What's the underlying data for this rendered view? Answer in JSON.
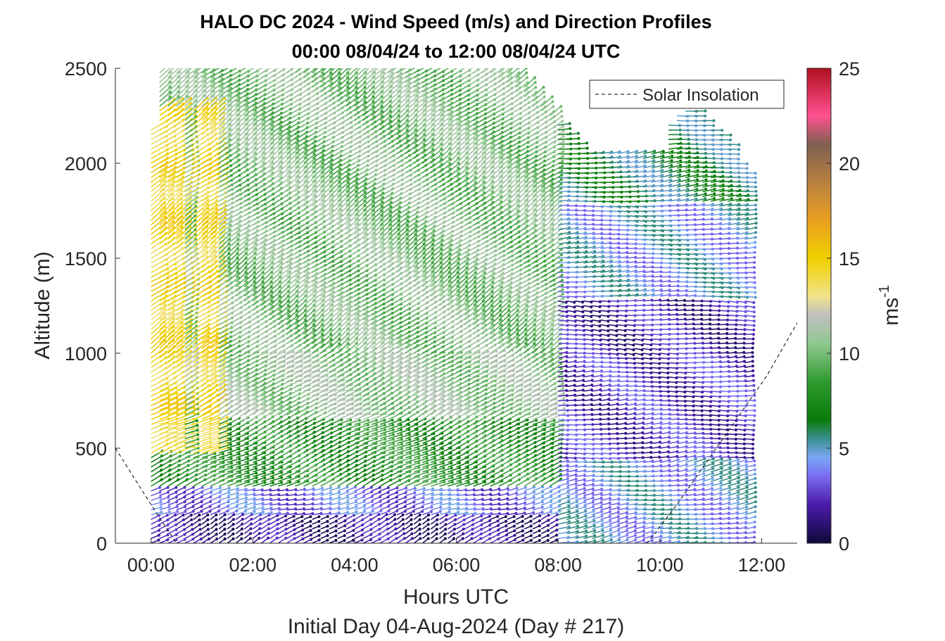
{
  "chart_data": {
    "type": "wind_barb_profile",
    "title": "HALO DC 2024 - Wind Speed (m/s) and Direction Profiles",
    "subtitle": "00:00 08/04/24 to 12:00 08/04/24  UTC",
    "xlabel": "Hours UTC",
    "xlabel2": "Initial Day 04-Aug-2024 (Day # 217)",
    "ylabel": "Altitude (m)",
    "xlim_hours": [
      -0.7,
      12.7
    ],
    "ylim": [
      0,
      2500
    ],
    "x_ticks": [
      0,
      2,
      4,
      6,
      8,
      10,
      12
    ],
    "x_tick_labels": [
      "00:00",
      "02:00",
      "04:00",
      "06:00",
      "08:00",
      "10:00",
      "12:00"
    ],
    "y_ticks": [
      0,
      500,
      1000,
      1500,
      2000,
      2500
    ],
    "y_tick_labels": [
      "0",
      "500",
      "1000",
      "1500",
      "2000",
      "2500"
    ],
    "legend": {
      "label": "Solar Insolation",
      "position": "top-right",
      "line_style": "dashed"
    },
    "colorbar": {
      "label": "ms",
      "label_exponent": "-1",
      "range": [
        0,
        25
      ],
      "ticks": [
        0,
        5,
        10,
        15,
        20,
        25
      ],
      "tick_labels": [
        "0",
        "5",
        "10",
        "15",
        "20",
        "25"
      ],
      "stops": [
        [
          0,
          "#0d0a3a"
        ],
        [
          2,
          "#4a1aa8"
        ],
        [
          3.5,
          "#7a6af0"
        ],
        [
          4.5,
          "#7aa6f5"
        ],
        [
          5.5,
          "#3a8f8f"
        ],
        [
          6.5,
          "#0a7a0a"
        ],
        [
          8.5,
          "#2f9a2f"
        ],
        [
          10.5,
          "#90c890"
        ],
        [
          12,
          "#bfbfbf"
        ],
        [
          13,
          "#f0e38a"
        ],
        [
          15,
          "#f0d000"
        ],
        [
          17,
          "#e8a020"
        ],
        [
          19,
          "#b88040"
        ],
        [
          21,
          "#806050"
        ],
        [
          22.5,
          "#ff5090"
        ],
        [
          25,
          "#b0101e"
        ]
      ]
    },
    "solar_insolation": {
      "x": [
        -0.7,
        -0.3,
        0.2,
        0.5,
        1,
        5,
        9.75,
        10.3,
        10.9,
        11.5,
        12.1,
        12.7
      ],
      "y": [
        500,
        330,
        120,
        0,
        0,
        0,
        0,
        190,
        420,
        650,
        880,
        1160
      ]
    },
    "profiles": {
      "time_start": 0.0,
      "time_step": 0.1667,
      "time_end": 11.75,
      "alt_step": 25,
      "top_altitude": [
        2180,
        2480,
        2500,
        2500,
        2500,
        2500,
        2500,
        2500,
        2500,
        2500,
        2500,
        2500,
        2500,
        2500,
        2500,
        2500,
        2500,
        2500,
        2500,
        2500,
        2500,
        2500,
        2500,
        2500,
        2500,
        2500,
        2500,
        2500,
        2500,
        2500,
        2500,
        2500,
        2500,
        2500,
        2500,
        2500,
        2500,
        2500,
        2500,
        2500,
        2500,
        2500,
        2500,
        2450,
        2400,
        2350,
        2300,
        2250,
        2200,
        2150,
        2100,
        2050,
        2050,
        2050,
        2050,
        2050,
        2050,
        2050,
        2050,
        2050,
        2050,
        2200,
        2250,
        2300,
        2280,
        2230,
        2180,
        2150,
        2100,
        2000,
        1950,
        1900
      ],
      "shear_layers": [
        {
          "below_m": 150,
          "speed_ms": 1.5,
          "direction_deg": 60
        },
        {
          "below_m": 300,
          "speed_ms": 3.5,
          "direction_deg": 75
        },
        {
          "below_m": 650,
          "speed_ms": 8.0,
          "direction_deg": 65
        },
        {
          "below_m": 1000,
          "speed_ms": 10.5,
          "direction_deg": 60
        },
        {
          "below_m": 2500,
          "speed_ms": 10.0,
          "direction_deg": 55
        }
      ],
      "late_period": {
        "from_hour": 8.0,
        "layers": [
          {
            "below_m": 450,
            "speed_ms": 4.5,
            "direction_deg": 80
          },
          {
            "below_m": 1000,
            "speed_ms": 2.5,
            "direction_deg": 88
          },
          {
            "below_m": 1300,
            "speed_ms": 2.0,
            "direction_deg": 92
          },
          {
            "below_m": 1800,
            "speed_ms": 4.5,
            "direction_deg": 88
          },
          {
            "below_m": 2500,
            "speed_ms": 6.0,
            "direction_deg": 85
          }
        ]
      },
      "yellow_column_hours": [
        0.1,
        0.4,
        1.0
      ],
      "yellow_speed_ms": 14.5
    }
  }
}
